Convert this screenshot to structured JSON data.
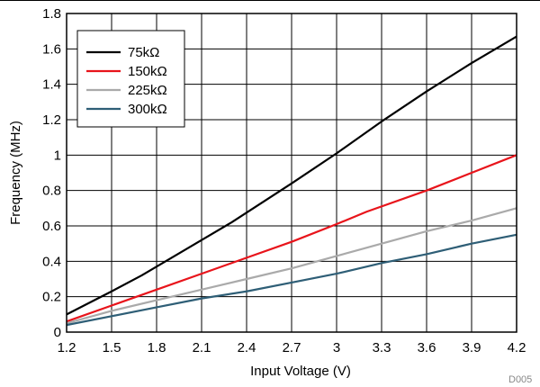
{
  "chart_data": {
    "type": "line",
    "title": "",
    "xlabel": "Input Voltage (V)",
    "ylabel": "Frequency (MHz)",
    "xlim": [
      1.2,
      4.2
    ],
    "ylim": [
      0,
      1.8
    ],
    "xticks": [
      "1.2",
      "1.5",
      "1.8",
      "2.1",
      "2.4",
      "2.7",
      "3",
      "3.3",
      "3.6",
      "3.9",
      "4.2"
    ],
    "yticks": [
      "0",
      "0.2",
      "0.4",
      "0.6",
      "0.8",
      "1",
      "1.2",
      "1.4",
      "1.6",
      "1.8"
    ],
    "grid": true,
    "legend_position": "top-left",
    "series": [
      {
        "name": "75kΩ",
        "color": "#000000",
        "x": [
          1.2,
          1.5,
          1.7,
          2.0,
          2.3,
          2.7,
          3.0,
          3.3,
          3.6,
          3.9,
          4.2
        ],
        "y": [
          0.1,
          0.23,
          0.32,
          0.47,
          0.62,
          0.84,
          1.01,
          1.19,
          1.36,
          1.52,
          1.67
        ]
      },
      {
        "name": "150kΩ",
        "color": "#e8141b",
        "x": [
          1.2,
          1.5,
          1.8,
          2.1,
          2.4,
          2.7,
          3.0,
          3.2,
          3.6,
          3.9,
          4.2
        ],
        "y": [
          0.06,
          0.15,
          0.24,
          0.33,
          0.42,
          0.51,
          0.61,
          0.68,
          0.8,
          0.9,
          1.0
        ]
      },
      {
        "name": "225kΩ",
        "color": "#aaaaaa",
        "x": [
          1.2,
          1.5,
          1.8,
          2.1,
          2.4,
          2.7,
          3.0,
          3.3,
          3.6,
          3.9,
          4.2
        ],
        "y": [
          0.05,
          0.12,
          0.18,
          0.24,
          0.3,
          0.36,
          0.43,
          0.5,
          0.57,
          0.63,
          0.7
        ]
      },
      {
        "name": "300kΩ",
        "color": "#2e5e76",
        "x": [
          1.2,
          1.5,
          1.8,
          2.1,
          2.4,
          2.7,
          3.0,
          3.3,
          3.6,
          3.9,
          4.2
        ],
        "y": [
          0.04,
          0.09,
          0.14,
          0.19,
          0.23,
          0.28,
          0.33,
          0.39,
          0.44,
          0.5,
          0.55
        ]
      }
    ]
  },
  "figure_code": "D005"
}
